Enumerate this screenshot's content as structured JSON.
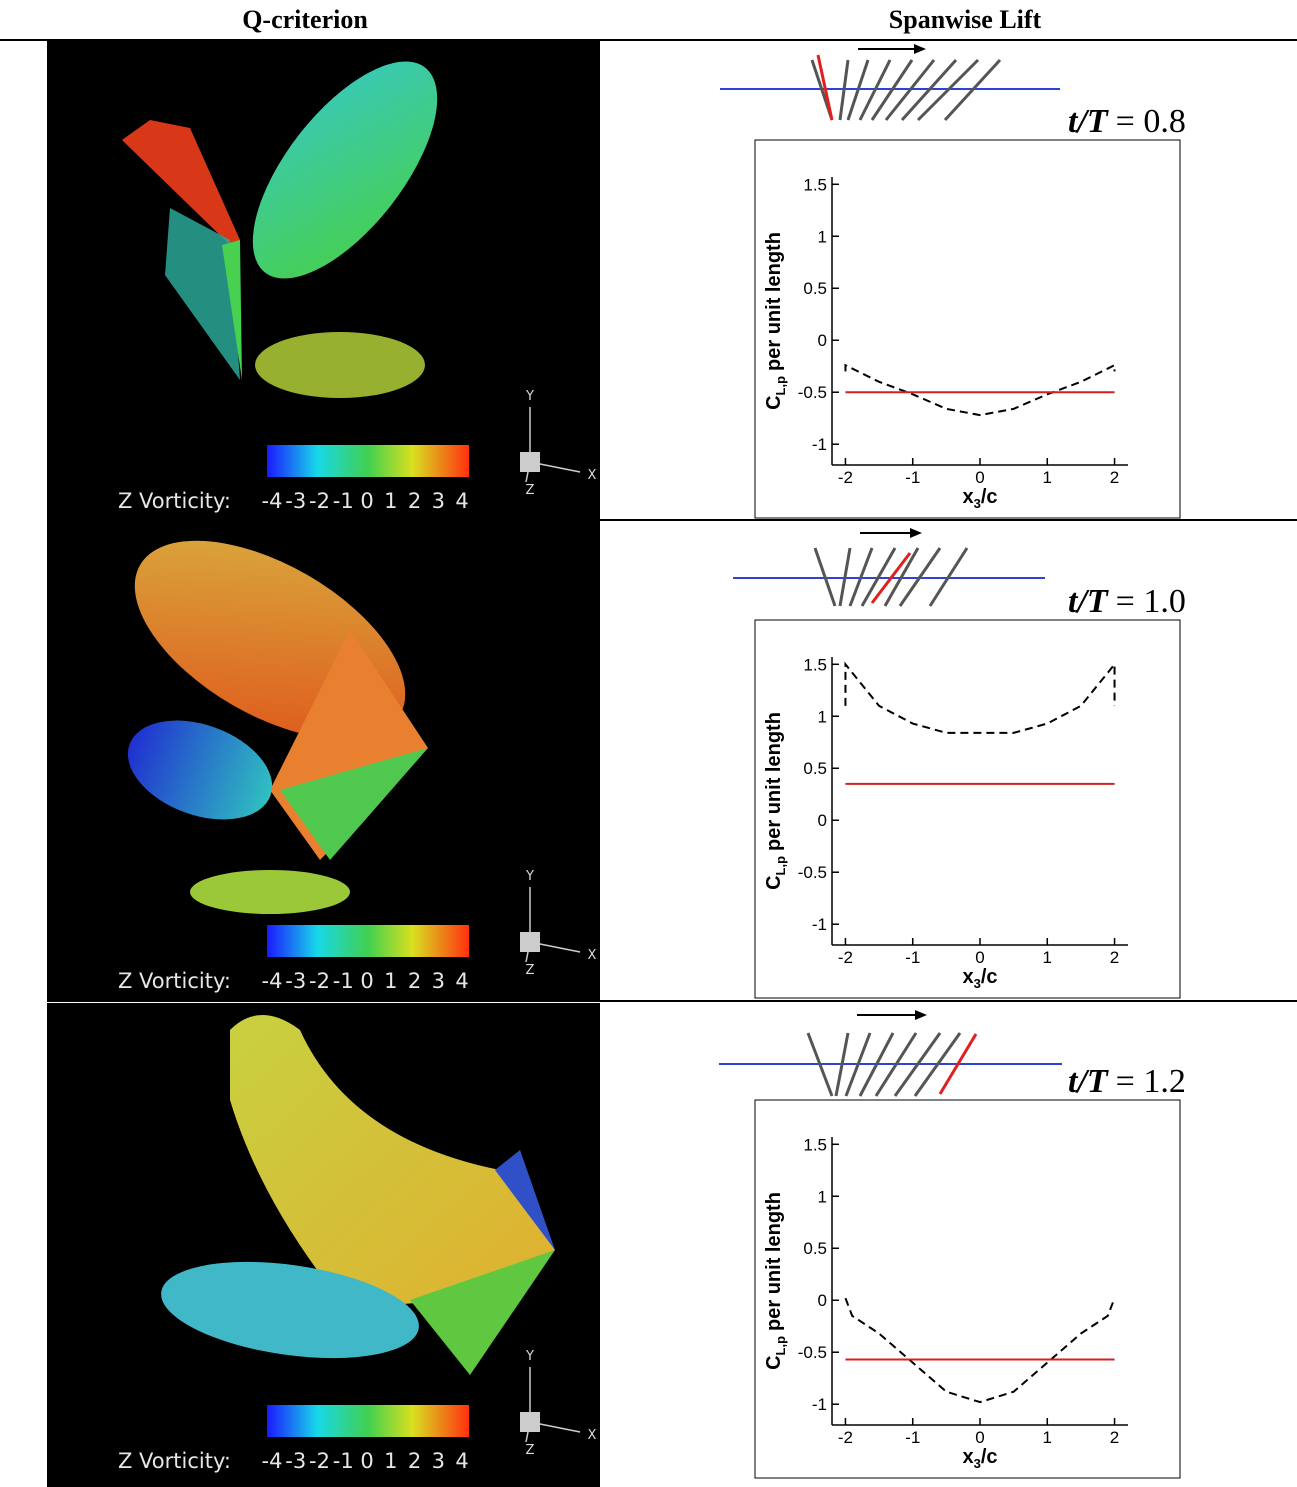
{
  "header": {
    "left": "Q-criterion",
    "right": "Spanwise Lift"
  },
  "rows": [
    {
      "colorbar_label": "Z Vorticity:",
      "colorbar_ticks": [
        -4,
        -3,
        -2,
        -1,
        0,
        1,
        2,
        3,
        4
      ],
      "triad": [
        "Y",
        "X",
        "Z"
      ]
    },
    {
      "colorbar_label": "Z Vorticity:",
      "colorbar_ticks": [
        -4,
        -3,
        -2,
        -1,
        0,
        1,
        2,
        3,
        4
      ],
      "triad": [
        "Y",
        "X",
        "Z"
      ]
    },
    {
      "colorbar_label": "Z Vorticity:",
      "colorbar_ticks": [
        -4,
        -3,
        -2,
        -1,
        0,
        1,
        2,
        3,
        4
      ],
      "triad": [
        "Y",
        "X",
        "Z"
      ]
    }
  ],
  "chart_data": [
    {
      "type": "line",
      "annotation": {
        "symbol": "t/T",
        "text": "= 0.8"
      },
      "ylabel": {
        "main": "C",
        "sub": "L,p",
        "tail": "per unit length"
      },
      "xlabel": {
        "main": "x",
        "sub": "3",
        "tail": "/c"
      },
      "xlim": [
        -2.2,
        2.2
      ],
      "xticks": [
        -2,
        -1,
        0,
        1,
        2
      ],
      "ylim": [
        -1.2,
        1.57
      ],
      "yticks": [
        -1,
        -0.5,
        0,
        0.5,
        1,
        1.5
      ],
      "series": [
        {
          "color": "#000000",
          "dashed": true,
          "x": [
            -2,
            -2,
            -1.5,
            -1,
            -0.5,
            0,
            0.5,
            1,
            1.5,
            2,
            2
          ],
          "values": [
            -0.3,
            -0.24,
            -0.4,
            -0.52,
            -0.66,
            -0.72,
            -0.66,
            -0.52,
            -0.4,
            -0.24,
            -0.3
          ]
        },
        {
          "color": "#d42020",
          "dashed": false,
          "x": [
            -2,
            2
          ],
          "values": [
            -0.5,
            -0.5
          ]
        }
      ]
    },
    {
      "type": "line",
      "annotation": {
        "symbol": "t/T",
        "text": "= 1.0"
      },
      "ylabel": {
        "main": "C",
        "sub": "L,p",
        "tail": "per unit length"
      },
      "xlabel": {
        "main": "x",
        "sub": "3",
        "tail": "/c"
      },
      "xlim": [
        -2.2,
        2.2
      ],
      "xticks": [
        -2,
        -1,
        0,
        1,
        2
      ],
      "ylim": [
        -1.2,
        1.57
      ],
      "yticks": [
        -1,
        -0.5,
        0,
        0.5,
        1,
        1.5
      ],
      "series": [
        {
          "color": "#000000",
          "dashed": true,
          "x": [
            -2,
            -2,
            -1.9,
            -1.5,
            -1,
            -0.5,
            0,
            0.5,
            1,
            1.5,
            1.9,
            2,
            2
          ],
          "values": [
            1.1,
            1.5,
            1.42,
            1.1,
            0.93,
            0.84,
            0.84,
            0.84,
            0.93,
            1.1,
            1.42,
            1.5,
            1.1
          ]
        },
        {
          "color": "#d42020",
          "dashed": false,
          "x": [
            -2,
            2
          ],
          "values": [
            0.35,
            0.35
          ]
        }
      ]
    },
    {
      "type": "line",
      "annotation": {
        "symbol": "t/T",
        "text": "= 1.2"
      },
      "ylabel": {
        "main": "C",
        "sub": "L,p",
        "tail": "per unit length"
      },
      "xlabel": {
        "main": "x",
        "sub": "3",
        "tail": "/c"
      },
      "xlim": [
        -2.2,
        2.2
      ],
      "xticks": [
        -2,
        -1,
        0,
        1,
        2
      ],
      "ylim": [
        -1.2,
        1.57
      ],
      "yticks": [
        -1,
        -0.5,
        0,
        0.5,
        1,
        1.5
      ],
      "series": [
        {
          "color": "#000000",
          "dashed": true,
          "x": [
            -2,
            -1.9,
            -1.5,
            -1,
            -0.5,
            0,
            0.5,
            1,
            1.5,
            1.9,
            2
          ],
          "values": [
            0.02,
            -0.15,
            -0.32,
            -0.6,
            -0.88,
            -0.98,
            -0.88,
            -0.6,
            -0.32,
            -0.15,
            0.02
          ]
        },
        {
          "color": "#d42020",
          "dashed": false,
          "x": [
            -2,
            2
          ],
          "values": [
            -0.57,
            -0.57
          ]
        }
      ]
    }
  ]
}
